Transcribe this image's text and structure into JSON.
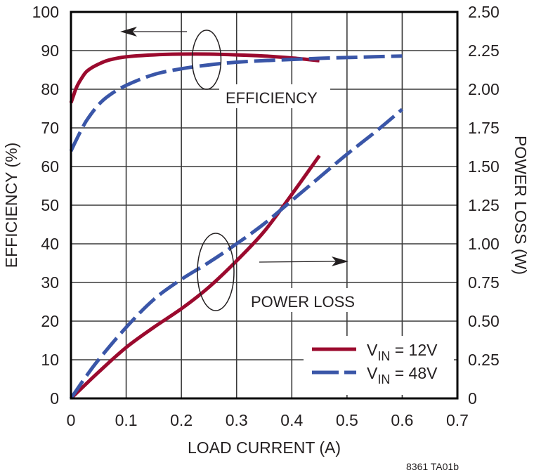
{
  "chart_data": {
    "type": "line",
    "title": "",
    "xlabel": "LOAD CURRENT (A)",
    "ylabel": "EFFICIENCY (%)",
    "y2label": "POWER LOSS (W)",
    "xlim": [
      0,
      0.7
    ],
    "ylim": [
      0,
      100
    ],
    "y2lim": [
      0,
      2.5
    ],
    "grid": true,
    "x_ticks": [
      "0",
      "0.1",
      "0.2",
      "0.3",
      "0.4",
      "0.5",
      "0.6",
      "0.7"
    ],
    "y_ticks": [
      "0",
      "10",
      "20",
      "30",
      "40",
      "50",
      "60",
      "70",
      "80",
      "90",
      "100"
    ],
    "y2_ticks": [
      "0",
      "0.25",
      "0.50",
      "0.75",
      "1.00",
      "1.25",
      "1.50",
      "1.75",
      "2.00",
      "2.25",
      "2.50"
    ],
    "annotations": [
      "EFFICIENCY",
      "POWER LOSS"
    ],
    "legend": {
      "position": "lower right",
      "entries": [
        {
          "label_main": "V",
          "label_sub": "IN",
          "label_rest": " = 12V",
          "style": "solid",
          "color": "#9b0a2e"
        },
        {
          "label_main": "V",
          "label_sub": "IN",
          "label_rest": " = 48V",
          "style": "dashed",
          "color": "#3a56a8"
        }
      ]
    },
    "series": [
      {
        "name": "Efficiency VIN = 12V",
        "axis": "left",
        "style": "solid",
        "color": "#9b0a2e",
        "x": [
          0,
          0.005,
          0.01,
          0.02,
          0.03,
          0.05,
          0.07,
          0.1,
          0.15,
          0.2,
          0.25,
          0.3,
          0.35,
          0.4,
          0.45
        ],
        "y": [
          76.5,
          78.5,
          80.5,
          83,
          84.8,
          86.5,
          87.6,
          88.4,
          88.9,
          89.1,
          89.1,
          88.9,
          88.6,
          88.1,
          87.4
        ]
      },
      {
        "name": "Efficiency VIN = 48V",
        "axis": "left",
        "style": "dashed",
        "color": "#3a56a8",
        "x": [
          0,
          0.01,
          0.02,
          0.03,
          0.05,
          0.07,
          0.1,
          0.15,
          0.2,
          0.25,
          0.3,
          0.35,
          0.4,
          0.45,
          0.5,
          0.55,
          0.6
        ],
        "y": [
          64,
          67,
          69.8,
          72.3,
          76,
          78.5,
          81,
          83.8,
          85.3,
          86.3,
          87,
          87.4,
          87.7,
          88,
          88.2,
          88.4,
          88.6
        ]
      },
      {
        "name": "Power Loss VIN = 12V",
        "axis": "right",
        "style": "solid",
        "color": "#9b0a2e",
        "x": [
          0,
          0.05,
          0.1,
          0.15,
          0.2,
          0.25,
          0.3,
          0.35,
          0.4,
          0.45
        ],
        "y": [
          0,
          0.17,
          0.33,
          0.46,
          0.58,
          0.72,
          0.89,
          1.08,
          1.32,
          1.57
        ]
      },
      {
        "name": "Power Loss VIN = 48V",
        "axis": "right",
        "style": "dashed",
        "color": "#3a56a8",
        "x": [
          0,
          0.025,
          0.05,
          0.1,
          0.15,
          0.2,
          0.25,
          0.3,
          0.35,
          0.4,
          0.45,
          0.5,
          0.55,
          0.6
        ],
        "y": [
          0,
          0.13,
          0.25,
          0.46,
          0.64,
          0.77,
          0.88,
          1.0,
          1.13,
          1.28,
          1.43,
          1.58,
          1.72,
          1.87
        ]
      }
    ]
  },
  "footnote": "8361 TA01b"
}
